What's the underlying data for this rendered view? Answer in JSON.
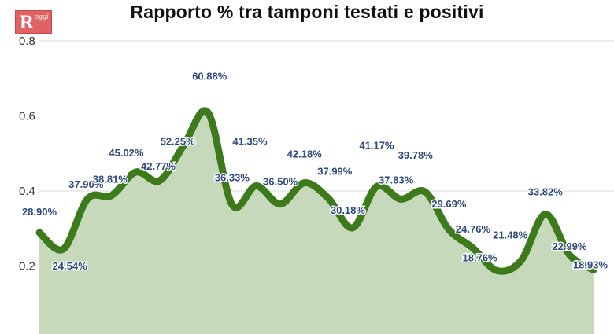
{
  "logo": {
    "letter": "R",
    "small_text": "oggi"
  },
  "chart_data": {
    "type": "area",
    "title": "Rapporto % tra tamponi testati e positivi",
    "xlabel": "",
    "ylabel": "",
    "ylim": [
      0,
      0.8
    ],
    "yticks": [
      {
        "value": 0.2,
        "label": "0.2"
      },
      {
        "value": 0.4,
        "label": "0.4"
      },
      {
        "value": 0.6,
        "label": "0.6"
      },
      {
        "value": 0.8,
        "label": "0.8"
      }
    ],
    "grid": true,
    "colors": {
      "line": "#3d7a1c",
      "fill": "#c6d9ba",
      "label": "#2e4a7d",
      "grid": "#d9d9d9"
    },
    "points": [
      {
        "y": 0.289,
        "label": "28.90%"
      },
      {
        "y": 0.2454,
        "label": "24.54%"
      },
      {
        "y": 0.379,
        "label": "37.90%"
      },
      {
        "y": 0.3881,
        "label": "38.81%"
      },
      {
        "y": 0.4502,
        "label": "45.02%"
      },
      {
        "y": 0.4277,
        "label": "42.77%"
      },
      {
        "y": 0.5225,
        "label": "52.25%"
      },
      {
        "y": 0.6088,
        "label": "60.88%"
      },
      {
        "y": 0.3633,
        "label": "36.33%"
      },
      {
        "y": 0.4135,
        "label": "41.35%"
      },
      {
        "y": 0.365,
        "label": "36.50%"
      },
      {
        "y": 0.4218,
        "label": "42.18%"
      },
      {
        "y": 0.3799,
        "label": "37.99%"
      },
      {
        "y": 0.3018,
        "label": "30.18%"
      },
      {
        "y": 0.4117,
        "label": "41.17%"
      },
      {
        "y": 0.3783,
        "label": "37.83%"
      },
      {
        "y": 0.3978,
        "label": "39.78%"
      },
      {
        "y": 0.2969,
        "label": "29.69%"
      },
      {
        "y": 0.2476,
        "label": "24.76%"
      },
      {
        "y": 0.1876,
        "label": "18.76%"
      },
      {
        "y": 0.2148,
        "label": "21.48%"
      },
      {
        "y": 0.3382,
        "label": "33.82%"
      },
      {
        "y": 0.2299,
        "label": "22.99%"
      },
      {
        "y": 0.1893,
        "label": "18.93%"
      }
    ]
  }
}
